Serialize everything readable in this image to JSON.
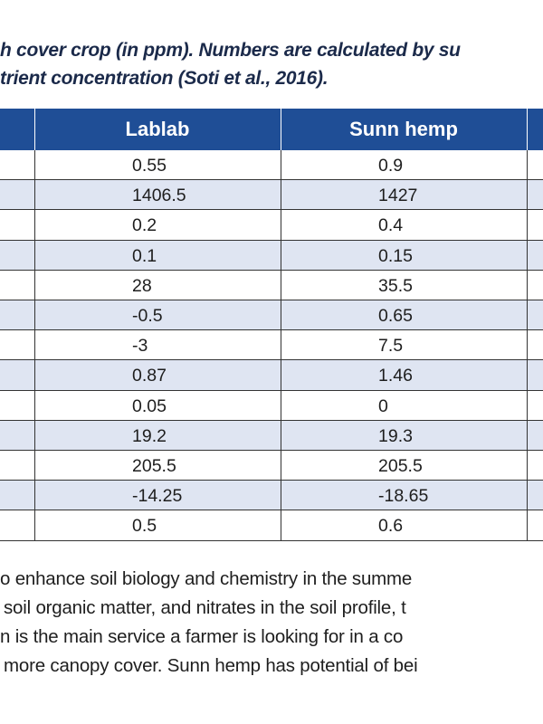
{
  "caption": {
    "lines": [
      "h cover crop (in ppm). Numbers are calculated by su",
      "trient concentration (Soti et al., 2016)."
    ]
  },
  "table": {
    "headers": [
      "Lablab",
      "Sunn hemp"
    ],
    "rows": [
      [
        "0.55",
        "0.9"
      ],
      [
        "1406.5",
        "1427"
      ],
      [
        "0.2",
        "0.4"
      ],
      [
        "0.1",
        "0.15"
      ],
      [
        "28",
        "35.5"
      ],
      [
        "-0.5",
        "0.65"
      ],
      [
        "-3",
        "7.5"
      ],
      [
        "0.87",
        "1.46"
      ],
      [
        "0.05",
        "0"
      ],
      [
        "19.2",
        "19.3"
      ],
      [
        "205.5",
        "205.5"
      ],
      [
        "-14.25",
        "-18.65"
      ],
      [
        "0.5",
        "0.6"
      ]
    ]
  },
  "paragraph": {
    "lines": [
      "o enhance soil biology and chemistry in the summe",
      "soil organic matter, and nitrates in the soil profile, t",
      "n is the main service a farmer is looking for in a co",
      "more canopy cover. Sunn hemp has potential of bei"
    ]
  }
}
